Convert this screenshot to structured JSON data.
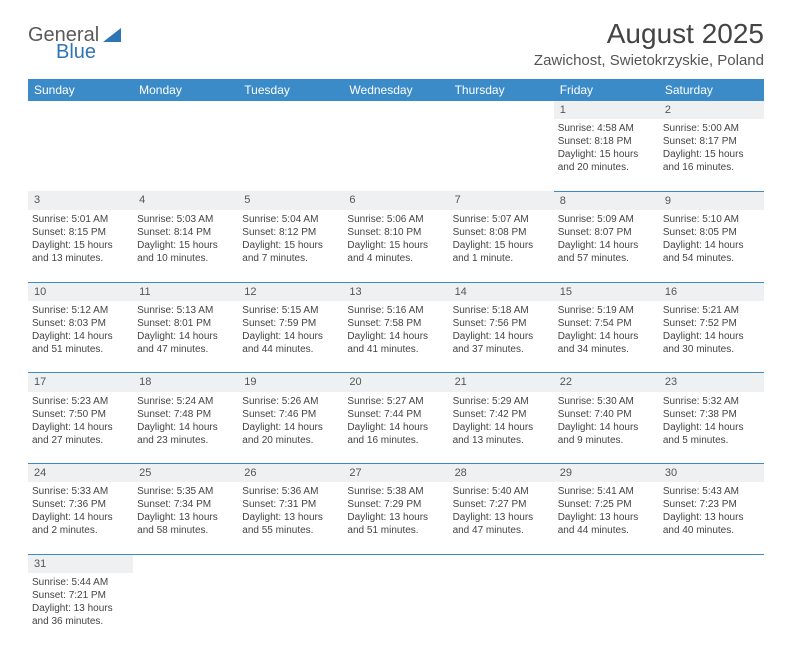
{
  "logo": {
    "word1": "General",
    "word2": "Blue"
  },
  "header": {
    "month_title": "August 2025",
    "location": "Zawichost, Swietokrzyskie, Poland"
  },
  "day_headers": [
    "Sunday",
    "Monday",
    "Tuesday",
    "Wednesday",
    "Thursday",
    "Friday",
    "Saturday"
  ],
  "colors": {
    "header_bg": "#3b8bc9",
    "daynum_bg": "#eef0f2",
    "rule": "#3b8bc9",
    "accent": "#2e75b6"
  },
  "weeks": [
    {
      "nums": [
        "",
        "",
        "",
        "",
        "",
        "1",
        "2"
      ],
      "cells": [
        null,
        null,
        null,
        null,
        null,
        {
          "sunrise": "4:58 AM",
          "sunset": "8:18 PM",
          "daylight": "15 hours and 20 minutes."
        },
        {
          "sunrise": "5:00 AM",
          "sunset": "8:17 PM",
          "daylight": "15 hours and 16 minutes."
        }
      ]
    },
    {
      "nums": [
        "3",
        "4",
        "5",
        "6",
        "7",
        "8",
        "9"
      ],
      "cells": [
        {
          "sunrise": "5:01 AM",
          "sunset": "8:15 PM",
          "daylight": "15 hours and 13 minutes."
        },
        {
          "sunrise": "5:03 AM",
          "sunset": "8:14 PM",
          "daylight": "15 hours and 10 minutes."
        },
        {
          "sunrise": "5:04 AM",
          "sunset": "8:12 PM",
          "daylight": "15 hours and 7 minutes."
        },
        {
          "sunrise": "5:06 AM",
          "sunset": "8:10 PM",
          "daylight": "15 hours and 4 minutes."
        },
        {
          "sunrise": "5:07 AM",
          "sunset": "8:08 PM",
          "daylight": "15 hours and 1 minute."
        },
        {
          "sunrise": "5:09 AM",
          "sunset": "8:07 PM",
          "daylight": "14 hours and 57 minutes."
        },
        {
          "sunrise": "5:10 AM",
          "sunset": "8:05 PM",
          "daylight": "14 hours and 54 minutes."
        }
      ]
    },
    {
      "nums": [
        "10",
        "11",
        "12",
        "13",
        "14",
        "15",
        "16"
      ],
      "cells": [
        {
          "sunrise": "5:12 AM",
          "sunset": "8:03 PM",
          "daylight": "14 hours and 51 minutes."
        },
        {
          "sunrise": "5:13 AM",
          "sunset": "8:01 PM",
          "daylight": "14 hours and 47 minutes."
        },
        {
          "sunrise": "5:15 AM",
          "sunset": "7:59 PM",
          "daylight": "14 hours and 44 minutes."
        },
        {
          "sunrise": "5:16 AM",
          "sunset": "7:58 PM",
          "daylight": "14 hours and 41 minutes."
        },
        {
          "sunrise": "5:18 AM",
          "sunset": "7:56 PM",
          "daylight": "14 hours and 37 minutes."
        },
        {
          "sunrise": "5:19 AM",
          "sunset": "7:54 PM",
          "daylight": "14 hours and 34 minutes."
        },
        {
          "sunrise": "5:21 AM",
          "sunset": "7:52 PM",
          "daylight": "14 hours and 30 minutes."
        }
      ]
    },
    {
      "nums": [
        "17",
        "18",
        "19",
        "20",
        "21",
        "22",
        "23"
      ],
      "cells": [
        {
          "sunrise": "5:23 AM",
          "sunset": "7:50 PM",
          "daylight": "14 hours and 27 minutes."
        },
        {
          "sunrise": "5:24 AM",
          "sunset": "7:48 PM",
          "daylight": "14 hours and 23 minutes."
        },
        {
          "sunrise": "5:26 AM",
          "sunset": "7:46 PM",
          "daylight": "14 hours and 20 minutes."
        },
        {
          "sunrise": "5:27 AM",
          "sunset": "7:44 PM",
          "daylight": "14 hours and 16 minutes."
        },
        {
          "sunrise": "5:29 AM",
          "sunset": "7:42 PM",
          "daylight": "14 hours and 13 minutes."
        },
        {
          "sunrise": "5:30 AM",
          "sunset": "7:40 PM",
          "daylight": "14 hours and 9 minutes."
        },
        {
          "sunrise": "5:32 AM",
          "sunset": "7:38 PM",
          "daylight": "14 hours and 5 minutes."
        }
      ]
    },
    {
      "nums": [
        "24",
        "25",
        "26",
        "27",
        "28",
        "29",
        "30"
      ],
      "cells": [
        {
          "sunrise": "5:33 AM",
          "sunset": "7:36 PM",
          "daylight": "14 hours and 2 minutes."
        },
        {
          "sunrise": "5:35 AM",
          "sunset": "7:34 PM",
          "daylight": "13 hours and 58 minutes."
        },
        {
          "sunrise": "5:36 AM",
          "sunset": "7:31 PM",
          "daylight": "13 hours and 55 minutes."
        },
        {
          "sunrise": "5:38 AM",
          "sunset": "7:29 PM",
          "daylight": "13 hours and 51 minutes."
        },
        {
          "sunrise": "5:40 AM",
          "sunset": "7:27 PM",
          "daylight": "13 hours and 47 minutes."
        },
        {
          "sunrise": "5:41 AM",
          "sunset": "7:25 PM",
          "daylight": "13 hours and 44 minutes."
        },
        {
          "sunrise": "5:43 AM",
          "sunset": "7:23 PM",
          "daylight": "13 hours and 40 minutes."
        }
      ]
    },
    {
      "nums": [
        "31",
        "",
        "",
        "",
        "",
        "",
        ""
      ],
      "cells": [
        {
          "sunrise": "5:44 AM",
          "sunset": "7:21 PM",
          "daylight": "13 hours and 36 minutes."
        },
        null,
        null,
        null,
        null,
        null,
        null
      ]
    }
  ],
  "labels": {
    "sunrise": "Sunrise: ",
    "sunset": "Sunset: ",
    "daylight": "Daylight: "
  }
}
